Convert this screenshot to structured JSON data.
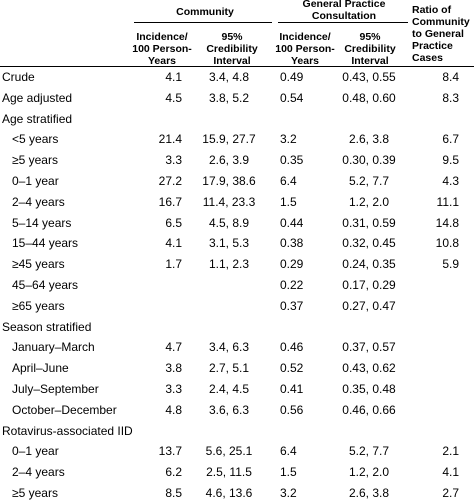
{
  "header": {
    "community": "Community",
    "gp": "General Practice Consultation",
    "ratio": "Ratio of Community to General Practice Cases",
    "incidence1": "Incidence/ 100 Person-Years",
    "ci1": "95% Credibility Interval",
    "incidence2": "Incidence/ 100 Person-Years",
    "ci2": "95% Credibility Interval"
  },
  "rows": [
    {
      "label": "Crude",
      "indent": false,
      "c1": "4.1",
      "c2": "3.4, 4.8",
      "c3": "0.49",
      "c4": "0.43, 0.55",
      "c5": "8.4"
    },
    {
      "label": "Age adjusted",
      "indent": false,
      "c1": "4.5",
      "c2": "3.8, 5.2",
      "c3": "0.54",
      "c4": "0.48, 0.60",
      "c5": "8.3"
    },
    {
      "label": "Age stratified",
      "indent": false,
      "c1": "",
      "c2": "",
      "c3": "",
      "c4": "",
      "c5": ""
    },
    {
      "label": "<5 years",
      "indent": true,
      "c1": "21.4",
      "c2": "15.9, 27.7",
      "c3": "3.2",
      "c4": "2.6, 3.8",
      "c5": "6.7"
    },
    {
      "label": "≥5 years",
      "indent": true,
      "c1": "3.3",
      "c2": "2.6, 3.9",
      "c3": "0.35",
      "c4": "0.30, 0.39",
      "c5": "9.5"
    },
    {
      "label": "0–1 year",
      "indent": true,
      "c1": "27.2",
      "c2": "17.9, 38.6",
      "c3": "6.4",
      "c4": "5.2, 7.7",
      "c5": "4.3"
    },
    {
      "label": "2–4 years",
      "indent": true,
      "c1": "16.7",
      "c2": "11.4, 23.3",
      "c3": "1.5",
      "c4": "1.2, 2.0",
      "c5": "11.1"
    },
    {
      "label": "5–14 years",
      "indent": true,
      "c1": "6.5",
      "c2": "4.5, 8.9",
      "c3": "0.44",
      "c4": "0.31, 0.59",
      "c5": "14.8"
    },
    {
      "label": "15–44 years",
      "indent": true,
      "c1": "4.1",
      "c2": "3.1, 5.3",
      "c3": "0.38",
      "c4": "0.32, 0.45",
      "c5": "10.8"
    },
    {
      "label": "≥45 years",
      "indent": true,
      "c1": "1.7",
      "c2": "1.1, 2.3",
      "c3": "0.29",
      "c4": "0.24, 0.35",
      "c5": "5.9"
    },
    {
      "label": "45–64 years",
      "indent": true,
      "c1": "",
      "c2": "",
      "c3": "0.22",
      "c4": "0.17, 0.29",
      "c5": ""
    },
    {
      "label": "≥65 years",
      "indent": true,
      "c1": "",
      "c2": "",
      "c3": "0.37",
      "c4": "0.27, 0.47",
      "c5": ""
    },
    {
      "label": "Season stratified",
      "indent": false,
      "c1": "",
      "c2": "",
      "c3": "",
      "c4": "",
      "c5": ""
    },
    {
      "label": "January–March",
      "indent": true,
      "c1": "4.7",
      "c2": "3.4, 6.3",
      "c3": "0.46",
      "c4": "0.37, 0.57",
      "c5": ""
    },
    {
      "label": "April–June",
      "indent": true,
      "c1": "3.8",
      "c2": "2.7, 5.1",
      "c3": "0.52",
      "c4": "0.43, 0.62",
      "c5": ""
    },
    {
      "label": "July–September",
      "indent": true,
      "c1": "3.3",
      "c2": "2.4, 4.5",
      "c3": "0.41",
      "c4": "0.35, 0.48",
      "c5": ""
    },
    {
      "label": "October–December",
      "indent": true,
      "c1": "4.8",
      "c2": "3.6, 6.3",
      "c3": "0.56",
      "c4": "0.46, 0.66",
      "c5": ""
    },
    {
      "label": "Rotavirus-associated IID",
      "indent": false,
      "c1": "",
      "c2": "",
      "c3": "",
      "c4": "",
      "c5": ""
    },
    {
      "label": "0–1 year",
      "indent": true,
      "c1": "13.7",
      "c2": "5.6, 25.1",
      "c3": "6.4",
      "c4": "5.2, 7.7",
      "c5": "2.1"
    },
    {
      "label": "2–4 years",
      "indent": true,
      "c1": "6.2",
      "c2": "2.5, 11.5",
      "c3": "1.5",
      "c4": "1.2, 2.0",
      "c5": "4.1"
    },
    {
      "label": "≥5 years",
      "indent": true,
      "c1": "8.5",
      "c2": "4.6, 13.6",
      "c3": "3.2",
      "c4": "2.6, 3.8",
      "c5": "2.7"
    }
  ]
}
